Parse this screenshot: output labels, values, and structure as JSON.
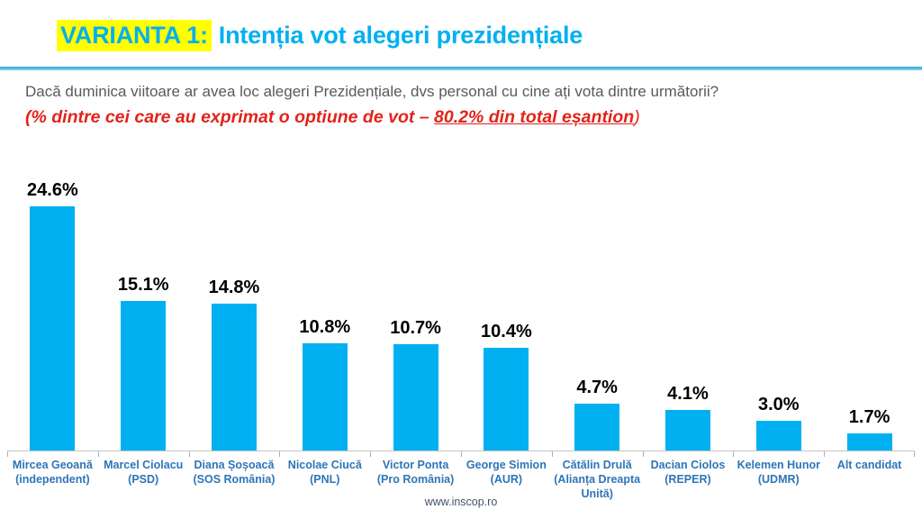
{
  "header": {
    "variant_label": "VARIANTA 1:",
    "title": "Intenția vot alegeri prezidențiale"
  },
  "question": {
    "line1": "Dacă duminica viitoare ar avea loc alegeri Prezidențiale, dvs personal cu cine ați vota dintre următorii?",
    "line2_prefix": "(% dintre cei care au exprimat o optiune de vot – ",
    "line2_highlight": "80.2% din total eșantion",
    "line2_suffix": ")"
  },
  "chart_data": {
    "type": "bar",
    "title": "Intenția vot alegeri prezidențiale",
    "categories": [
      "Mircea Geoană (independent)",
      "Marcel Ciolacu (PSD)",
      "Diana Șoșoacă (SOS România)",
      "Nicolae Ciucă (PNL)",
      "Victor Ponta (Pro România)",
      "George Simion (AUR)",
      "Cătălin Drulă (Alianța Dreapta Unită)",
      "Dacian Ciolos (REPER)",
      "Kelemen Hunor (UDMR)",
      "Alt candidat"
    ],
    "values": [
      24.6,
      15.1,
      14.8,
      10.8,
      10.7,
      10.4,
      4.7,
      4.1,
      3.0,
      1.7
    ],
    "value_labels": [
      "24.6%",
      "15.1%",
      "14.8%",
      "10.8%",
      "10.7%",
      "10.4%",
      "4.7%",
      "4.1%",
      "3.0%",
      "1.7%"
    ],
    "label_lines": [
      [
        "Mircea Geoană",
        "(independent)"
      ],
      [
        "Marcel Ciolacu",
        "(PSD)"
      ],
      [
        "Diana Șoșoacă",
        "(SOS România)"
      ],
      [
        "Nicolae Ciucă",
        "(PNL)"
      ],
      [
        "Victor Ponta",
        "(Pro România)"
      ],
      [
        "George Simion",
        "(AUR)"
      ],
      [
        "Cătălin Drulă",
        "(Alianța Dreapta",
        "Unită)"
      ],
      [
        "Dacian Ciolos",
        "(REPER)"
      ],
      [
        "Kelemen Hunor",
        "(UDMR)"
      ],
      [
        "Alt candidat"
      ]
    ],
    "xlabel": "",
    "ylabel": "",
    "ylim": [
      0,
      30
    ],
    "grid": false,
    "legend": false,
    "bar_color": "#00B0F0"
  },
  "footer": {
    "website": "www.inscop.ro"
  },
  "colors": {
    "accent_blue": "#00B0F0",
    "highlight_yellow": "#FFFF00",
    "category_label_blue": "#2E75B6",
    "question_gray": "#595959",
    "note_red": "#E2231A",
    "axis_gray": "#C6C6C6",
    "value_label_black": "#000000"
  }
}
